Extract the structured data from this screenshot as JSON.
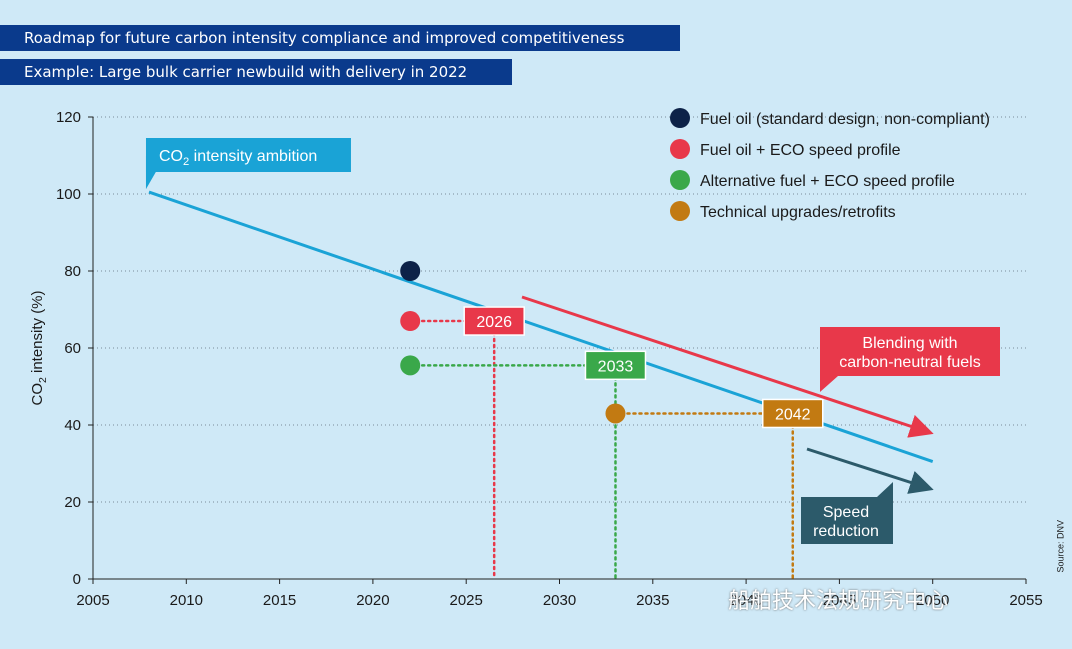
{
  "header": {
    "title": "Roadmap for future carbon intensity compliance and improved competitiveness",
    "subtitle": "Example: Large bulk carrier newbuild with delivery in 2022"
  },
  "source_label": "Source: DNV",
  "watermark_text": "船舶技术法规研究中心",
  "colors": {
    "background": "#cfe9f7",
    "header_bar": "#0a3a8c",
    "ambition_line": "#1aa3d6",
    "fuel_oil": "#0d2248",
    "eco_speed": "#e8384a",
    "alt_fuel": "#3aa84a",
    "retrofit": "#c27a12",
    "speed_box": "#2c5a6a"
  },
  "chart_data": {
    "type": "line",
    "title": "Roadmap for future carbon intensity compliance and improved competitiveness",
    "subtitle": "Example: Large bulk carrier newbuild with delivery in 2022",
    "xlabel": "",
    "ylabel": "CO2 intensity (%)",
    "xlim": [
      2005,
      2055
    ],
    "ylim": [
      0,
      120
    ],
    "x_ticks": [
      2005,
      2010,
      2015,
      2020,
      2025,
      2030,
      2035,
      2040,
      2045,
      2050,
      2055
    ],
    "y_ticks": [
      0,
      20,
      40,
      60,
      80,
      100,
      120
    ],
    "grid": "horizontal-dotted",
    "legend_position": "top-right",
    "series": [
      {
        "name": "CO2 intensity ambition",
        "type": "line",
        "x": [
          2008,
          2050
        ],
        "y": [
          100.5,
          30.5
        ]
      }
    ],
    "points": [
      {
        "name": "Fuel oil (standard design, non-compliant)",
        "x": 2022,
        "y": 80
      },
      {
        "name": "Fuel oil + ECO speed profile",
        "x": 2022,
        "y": 67,
        "compliant_until": "2026",
        "until_x": 2026.5
      },
      {
        "name": "Alternative fuel + ECO speed profile",
        "x": 2022,
        "y": 55.5,
        "compliant_until": "2033",
        "until_x": 2033
      },
      {
        "name": "Technical upgrades/retrofits",
        "x": 2033,
        "y": 43,
        "compliant_until": "2042",
        "until_x": 2042.5
      }
    ],
    "legend": [
      "Fuel oil (standard design, non-compliant)",
      "Fuel oil + ECO speed profile",
      "Alternative fuel + ECO speed profile",
      "Technical upgrades/retrofits"
    ],
    "annotations": {
      "ambition_label": "CO2 intensity ambition",
      "blending_label": [
        "Blending with",
        "carbon-neutral fuels"
      ],
      "speed_label": [
        "Speed",
        "reduction"
      ]
    }
  }
}
